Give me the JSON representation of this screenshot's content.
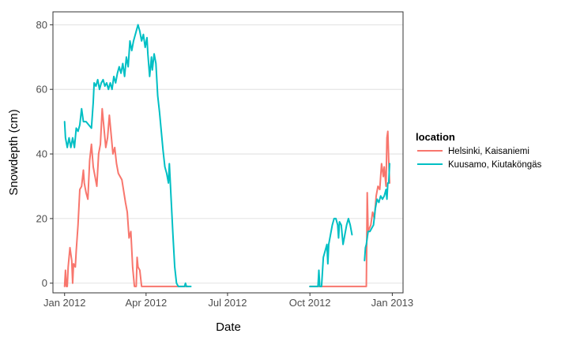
{
  "chart_data": {
    "type": "line",
    "title": "",
    "xlabel": "Date",
    "ylabel": "Snowdepth (cm)",
    "x_axis_type": "date",
    "xlim": [
      "2011-12-19",
      "2013-01-13"
    ],
    "ylim": [
      -3,
      84
    ],
    "x_ticks": [
      {
        "date": "2012-01-01",
        "label": "Jan 2012"
      },
      {
        "date": "2012-04-01",
        "label": "Apr 2012"
      },
      {
        "date": "2012-07-01",
        "label": "Jul 2012"
      },
      {
        "date": "2012-10-01",
        "label": "Oct 2012"
      },
      {
        "date": "2013-01-01",
        "label": "Jan 2013"
      }
    ],
    "y_ticks": [
      0,
      20,
      40,
      60,
      80
    ],
    "grid": true,
    "legend_title": "location",
    "legend_position": "right",
    "series": [
      {
        "name": "Helsinki, Kaisaniemi",
        "color": "#F8766D",
        "segments": [
          [
            [
              "2012-01-01",
              -1
            ],
            [
              "2012-01-02",
              4
            ],
            [
              "2012-01-03",
              -1
            ],
            [
              "2012-01-04",
              -1
            ],
            [
              "2012-01-05",
              5
            ],
            [
              "2012-01-07",
              11
            ],
            [
              "2012-01-09",
              7
            ],
            [
              "2012-01-10",
              0
            ],
            [
              "2012-01-11",
              6
            ],
            [
              "2012-01-13",
              5
            ],
            [
              "2012-01-14",
              10
            ],
            [
              "2012-01-16",
              18
            ],
            [
              "2012-01-18",
              29
            ],
            [
              "2012-01-20",
              30
            ],
            [
              "2012-01-22",
              35
            ],
            [
              "2012-01-23",
              31
            ],
            [
              "2012-01-25",
              28
            ],
            [
              "2012-01-27",
              26
            ],
            [
              "2012-01-29",
              38
            ],
            [
              "2012-01-31",
              43
            ],
            [
              "2012-02-02",
              36
            ],
            [
              "2012-02-04",
              33
            ],
            [
              "2012-02-06",
              30
            ],
            [
              "2012-02-08",
              40
            ],
            [
              "2012-02-10",
              43
            ],
            [
              "2012-02-12",
              54
            ],
            [
              "2012-02-14",
              48
            ],
            [
              "2012-02-16",
              42
            ],
            [
              "2012-02-18",
              45
            ],
            [
              "2012-02-20",
              52
            ],
            [
              "2012-02-22",
              46
            ],
            [
              "2012-02-24",
              40
            ],
            [
              "2012-02-26",
              42
            ],
            [
              "2012-02-28",
              37
            ],
            [
              "2012-03-01",
              34
            ],
            [
              "2012-03-05",
              32
            ],
            [
              "2012-03-09",
              25
            ],
            [
              "2012-03-11",
              22
            ],
            [
              "2012-03-13",
              14
            ],
            [
              "2012-03-15",
              16
            ],
            [
              "2012-03-17",
              5
            ],
            [
              "2012-03-19",
              -1
            ],
            [
              "2012-03-21",
              -1
            ],
            [
              "2012-03-22",
              8
            ],
            [
              "2012-03-23",
              5
            ],
            [
              "2012-03-25",
              4
            ],
            [
              "2012-03-27",
              -1
            ],
            [
              "2012-04-15",
              -1
            ],
            [
              "2012-05-15",
              -1
            ],
            [
              "2012-05-18",
              -1
            ]
          ],
          [
            [
              "2012-10-01",
              -1
            ],
            [
              "2012-11-01",
              -1
            ],
            [
              "2012-11-30",
              -1
            ],
            [
              "2012-12-03",
              -1
            ],
            [
              "2012-12-04",
              28
            ],
            [
              "2012-12-05",
              16
            ],
            [
              "2012-12-08",
              18
            ],
            [
              "2012-12-10",
              22
            ],
            [
              "2012-12-12",
              20
            ],
            [
              "2012-12-14",
              27
            ],
            [
              "2012-12-16",
              30
            ],
            [
              "2012-12-18",
              29
            ],
            [
              "2012-12-20",
              37
            ],
            [
              "2012-12-22",
              33
            ],
            [
              "2012-12-23",
              36
            ],
            [
              "2012-12-25",
              30
            ],
            [
              "2012-12-26",
              45
            ],
            [
              "2012-12-27",
              47
            ],
            [
              "2012-12-28",
              38
            ],
            [
              "2012-12-29",
              31
            ]
          ]
        ]
      },
      {
        "name": "Kuusamo, Kiutaköngäs",
        "color": "#00BFC4",
        "segments": [
          [
            [
              "2012-01-01",
              50
            ],
            [
              "2012-01-02",
              45
            ],
            [
              "2012-01-04",
              42
            ],
            [
              "2012-01-06",
              45
            ],
            [
              "2012-01-08",
              42
            ],
            [
              "2012-01-10",
              45
            ],
            [
              "2012-01-12",
              42
            ],
            [
              "2012-01-14",
              48
            ],
            [
              "2012-01-16",
              47
            ],
            [
              "2012-01-18",
              49
            ],
            [
              "2012-01-20",
              54
            ],
            [
              "2012-01-22",
              50
            ],
            [
              "2012-01-25",
              50
            ],
            [
              "2012-01-28",
              49
            ],
            [
              "2012-01-31",
              48
            ],
            [
              "2012-02-02",
              56
            ],
            [
              "2012-02-03",
              62
            ],
            [
              "2012-02-05",
              61
            ],
            [
              "2012-02-07",
              63
            ],
            [
              "2012-02-09",
              60
            ],
            [
              "2012-02-11",
              62
            ],
            [
              "2012-02-13",
              63
            ],
            [
              "2012-02-15",
              61
            ],
            [
              "2012-02-17",
              62
            ],
            [
              "2012-02-19",
              60
            ],
            [
              "2012-02-21",
              62
            ],
            [
              "2012-02-23",
              60
            ],
            [
              "2012-02-25",
              64
            ],
            [
              "2012-02-27",
              62
            ],
            [
              "2012-02-29",
              65
            ],
            [
              "2012-03-02",
              67
            ],
            [
              "2012-03-04",
              65
            ],
            [
              "2012-03-06",
              68
            ],
            [
              "2012-03-08",
              64
            ],
            [
              "2012-03-10",
              70
            ],
            [
              "2012-03-12",
              67
            ],
            [
              "2012-03-14",
              75
            ],
            [
              "2012-03-16",
              72
            ],
            [
              "2012-03-18",
              75
            ],
            [
              "2012-03-21",
              78
            ],
            [
              "2012-03-23",
              80
            ],
            [
              "2012-03-25",
              78
            ],
            [
              "2012-03-27",
              75
            ],
            [
              "2012-03-29",
              77
            ],
            [
              "2012-03-31",
              73
            ],
            [
              "2012-04-02",
              76
            ],
            [
              "2012-04-03",
              71
            ],
            [
              "2012-04-05",
              64
            ],
            [
              "2012-04-07",
              70
            ],
            [
              "2012-04-08",
              66
            ],
            [
              "2012-04-10",
              71
            ],
            [
              "2012-04-12",
              68
            ],
            [
              "2012-04-14",
              58
            ],
            [
              "2012-04-16",
              53
            ],
            [
              "2012-04-18",
              47
            ],
            [
              "2012-04-20",
              41
            ],
            [
              "2012-04-22",
              36
            ],
            [
              "2012-04-24",
              34
            ],
            [
              "2012-04-26",
              31
            ],
            [
              "2012-04-27",
              37
            ],
            [
              "2012-04-29",
              26
            ],
            [
              "2012-05-01",
              15
            ],
            [
              "2012-05-03",
              5
            ],
            [
              "2012-05-05",
              0
            ],
            [
              "2012-05-07",
              -1
            ],
            [
              "2012-05-14",
              -1
            ],
            [
              "2012-05-15",
              0
            ],
            [
              "2012-05-16",
              -1
            ],
            [
              "2012-05-21",
              -1
            ]
          ],
          [
            [
              "2012-10-01",
              -1
            ],
            [
              "2012-10-08",
              -1
            ],
            [
              "2012-10-10",
              -1
            ],
            [
              "2012-10-11",
              4
            ],
            [
              "2012-10-12",
              -1
            ],
            [
              "2012-10-14",
              -1
            ],
            [
              "2012-10-16",
              8
            ],
            [
              "2012-10-18",
              10
            ],
            [
              "2012-10-20",
              12
            ],
            [
              "2012-10-21",
              6
            ],
            [
              "2012-10-22",
              12
            ],
            [
              "2012-10-24",
              15
            ],
            [
              "2012-10-26",
              18
            ],
            [
              "2012-10-28",
              20
            ],
            [
              "2012-10-30",
              20
            ],
            [
              "2012-11-01",
              18
            ],
            [
              "2012-11-02",
              14
            ],
            [
              "2012-11-03",
              19
            ],
            [
              "2012-11-05",
              18
            ],
            [
              "2012-11-07",
              12
            ],
            [
              "2012-11-09",
              15
            ],
            [
              "2012-11-11",
              18
            ],
            [
              "2012-11-13",
              20
            ],
            [
              "2012-11-15",
              18
            ],
            [
              "2012-11-17",
              15
            ]
          ],
          [
            [
              "2012-12-01",
              7
            ],
            [
              "2012-12-02",
              11
            ],
            [
              "2012-12-03",
              12
            ],
            [
              "2012-12-05",
              16
            ],
            [
              "2012-12-07",
              16
            ],
            [
              "2012-12-09",
              17
            ],
            [
              "2012-12-11",
              18
            ],
            [
              "2012-12-13",
              23
            ],
            [
              "2012-12-15",
              26
            ],
            [
              "2012-12-17",
              25
            ],
            [
              "2012-12-19",
              27
            ],
            [
              "2012-12-21",
              26
            ],
            [
              "2012-12-23",
              27
            ],
            [
              "2012-12-25",
              29
            ],
            [
              "2012-12-26",
              26
            ],
            [
              "2012-12-27",
              31
            ],
            [
              "2012-12-28",
              31
            ],
            [
              "2012-12-29",
              37
            ]
          ]
        ]
      }
    ]
  }
}
